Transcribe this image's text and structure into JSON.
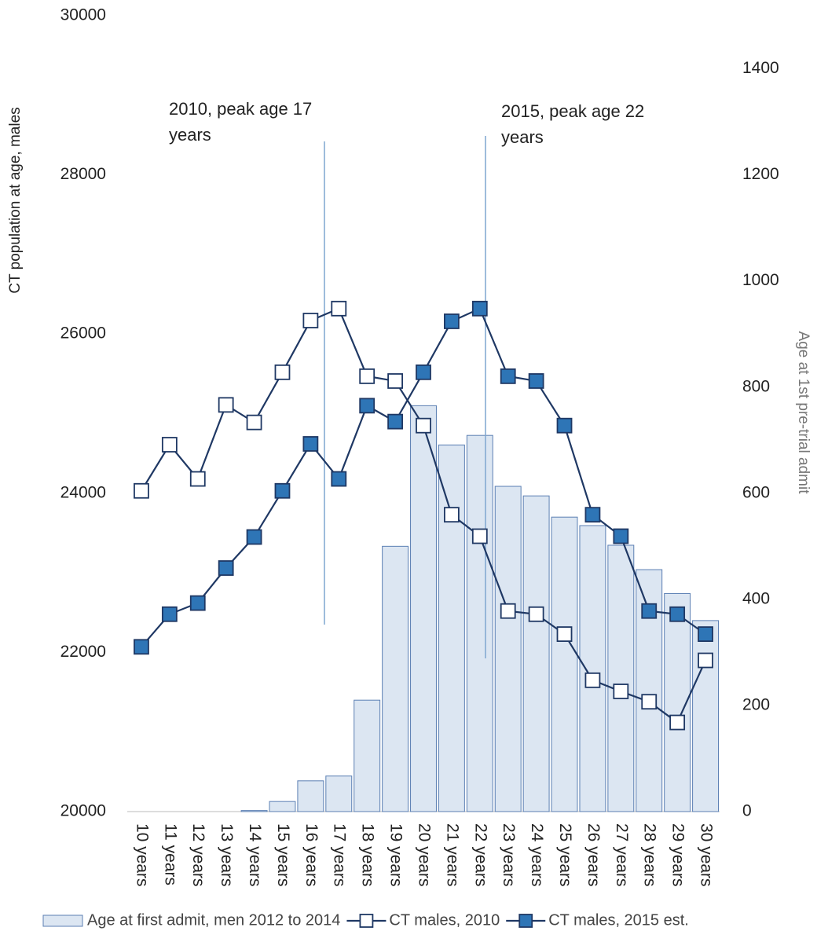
{
  "chart_data": {
    "type": "bar_line",
    "categories": [
      "10 years",
      "11 years",
      "12 years",
      "13 years",
      "14 years",
      "15 years",
      "16 years",
      "17 years",
      "18 years",
      "19 years",
      "20 years",
      "21 years",
      "22 years",
      "23 years",
      "24 years",
      "25 years",
      "26 years",
      "27 years",
      "28 years",
      "29 years",
      "30 years"
    ],
    "series": [
      {
        "name": "Age at first admit, men 2012 to 2014",
        "type": "bar",
        "axis": "y2",
        "color": "#dce6f2",
        "edge": "#5b7fb3",
        "values": [
          0,
          0,
          0,
          0,
          2,
          19,
          58,
          67,
          210,
          500,
          765,
          691,
          709,
          613,
          595,
          555,
          539,
          502,
          456,
          411,
          360
        ]
      },
      {
        "name": "CT males, 2010",
        "type": "line",
        "axis": "y",
        "color": "#1f3864",
        "marker": "#ffffff",
        "values": [
          24030,
          24610,
          24180,
          25110,
          24890,
          25520,
          26170,
          26320,
          25470,
          25410,
          24850,
          23730,
          23460,
          22520,
          22480,
          22230,
          21650,
          21510,
          21380,
          21120,
          21900
        ]
      },
      {
        "name": "CT males, 2015 est.",
        "type": "line",
        "axis": "y",
        "color": "#1f3864",
        "marker": "#2e75b6",
        "values": [
          22070,
          22480,
          22620,
          23060,
          23450,
          24030,
          24620,
          24180,
          25100,
          24900,
          25520,
          26160,
          26320,
          25470,
          25410,
          24850,
          23730,
          23460,
          22520,
          22480,
          22230
        ]
      }
    ],
    "ylabel": "CT population at age, males",
    "y2label": "Age at 1st pre-trial admit",
    "ylim": [
      20000,
      30000
    ],
    "yticks": [
      20000,
      22000,
      24000,
      26000,
      28000,
      30000
    ],
    "y2lim": [
      0,
      1500
    ],
    "y2ticks": [
      0,
      200,
      400,
      600,
      800,
      1000,
      1200,
      1400
    ],
    "annotations": [
      {
        "text": "2010, peak age 17 years",
        "category": 7
      },
      {
        "text": "2015, peak age 22 years",
        "category": 12
      }
    ],
    "legend": "bottom"
  }
}
